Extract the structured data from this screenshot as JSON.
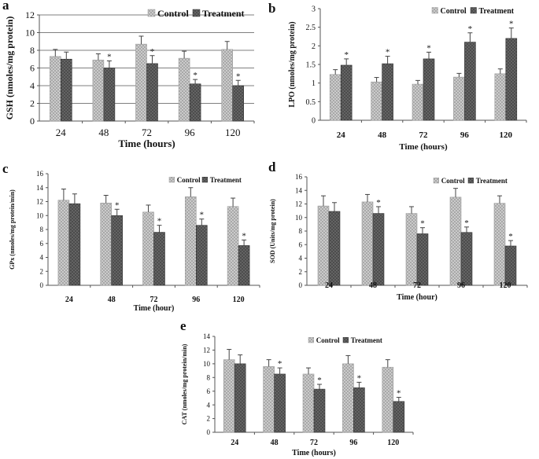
{
  "chart_data": [
    {
      "panel": "a",
      "type": "bar",
      "title": "",
      "xlabel": "Time (hours)",
      "ylabel": "GSH (nmoles/mg protein)",
      "categories": [
        "24",
        "48",
        "72",
        "96",
        "120"
      ],
      "ylim": [
        0,
        12
      ],
      "yticks": [
        "0",
        "2",
        "4",
        "6",
        "8",
        "10",
        "12"
      ],
      "gridlines": true,
      "legend": "top-right",
      "series": [
        {
          "name": "Control",
          "values": [
            7.3,
            6.9,
            8.7,
            7.1,
            8.1
          ],
          "errors": [
            0.8,
            0.7,
            0.9,
            0.8,
            0.9
          ],
          "marks": [
            "",
            "",
            "",
            "",
            ""
          ]
        },
        {
          "name": "Treatment",
          "values": [
            7.0,
            6.0,
            6.5,
            4.2,
            4.0
          ],
          "errors": [
            0.8,
            0.8,
            0.9,
            0.5,
            0.6
          ],
          "marks": [
            "",
            "*",
            "*",
            "*",
            "*"
          ]
        }
      ]
    },
    {
      "panel": "b",
      "type": "bar",
      "title": "",
      "xlabel": "Time (hours)",
      "ylabel": "LPO (nmoles/mg protein)",
      "categories": [
        "24",
        "48",
        "72",
        "96",
        "120"
      ],
      "ylim": [
        0,
        3
      ],
      "yticks": [
        "0",
        "0.5",
        "1",
        "1.5",
        "2",
        "2.5",
        "3"
      ],
      "gridlines": false,
      "legend": "top-right",
      "series": [
        {
          "name": "Control",
          "values": [
            1.23,
            1.03,
            0.97,
            1.16,
            1.25
          ],
          "errors": [
            0.13,
            0.12,
            0.1,
            0.1,
            0.13
          ],
          "marks": [
            "",
            "",
            "",
            "",
            ""
          ]
        },
        {
          "name": "Treatment",
          "values": [
            1.48,
            1.52,
            1.65,
            2.1,
            2.2
          ],
          "errors": [
            0.17,
            0.2,
            0.18,
            0.25,
            0.28
          ],
          "marks": [
            "*",
            "*",
            "*",
            "*",
            "*"
          ]
        }
      ]
    },
    {
      "panel": "c",
      "type": "bar",
      "title": "",
      "xlabel": "Time (hour)",
      "ylabel": "GPx (nmoles/mg protein/min)",
      "categories": [
        "24",
        "48",
        "72",
        "96",
        "120"
      ],
      "ylim": [
        0,
        16
      ],
      "yticks": [
        "0",
        "2",
        "4",
        "6",
        "8",
        "10",
        "12",
        "14",
        "16"
      ],
      "gridlines": false,
      "legend": "top-right",
      "series": [
        {
          "name": "Control",
          "values": [
            12.2,
            11.8,
            10.5,
            12.7,
            11.3
          ],
          "errors": [
            1.6,
            1.1,
            1.0,
            1.3,
            1.2
          ],
          "marks": [
            "",
            "",
            "",
            "",
            ""
          ]
        },
        {
          "name": "Treatment",
          "values": [
            11.7,
            10.0,
            7.6,
            8.6,
            5.7
          ],
          "errors": [
            1.4,
            0.9,
            1.0,
            0.9,
            0.8
          ],
          "marks": [
            "",
            "*",
            "*",
            "*",
            "*"
          ]
        }
      ]
    },
    {
      "panel": "d",
      "type": "bar",
      "title": "",
      "xlabel": "Time (hour)",
      "ylabel": "SOD (Units/mg protein)",
      "categories": [
        "24",
        "48",
        "72",
        "96",
        "120"
      ],
      "ylim": [
        0,
        16
      ],
      "yticks": [
        "0",
        "2",
        "4",
        "6",
        "8",
        "10",
        "12",
        "14",
        "16"
      ],
      "gridlines": false,
      "legend": "top-right",
      "series": [
        {
          "name": "Control",
          "values": [
            11.7,
            12.3,
            10.6,
            13.0,
            12.1
          ],
          "errors": [
            1.5,
            1.1,
            1.0,
            1.3,
            1.1
          ],
          "marks": [
            "",
            "",
            "",
            "",
            ""
          ]
        },
        {
          "name": "Treatment",
          "values": [
            10.9,
            10.6,
            7.6,
            7.8,
            5.8
          ],
          "errors": [
            1.3,
            1.0,
            0.9,
            0.8,
            0.8
          ],
          "marks": [
            "",
            "*",
            "*",
            "*",
            "*"
          ]
        }
      ]
    },
    {
      "panel": "e",
      "type": "bar",
      "title": "",
      "xlabel": "Time (hours)",
      "ylabel": "CAT (nmoles/mg protein/min)",
      "categories": [
        "24",
        "48",
        "72",
        "96",
        "120"
      ],
      "ylim": [
        0,
        14
      ],
      "yticks": [
        "0",
        "2",
        "4",
        "6",
        "8",
        "10",
        "12",
        "14"
      ],
      "gridlines": false,
      "legend": "top-right",
      "series": [
        {
          "name": "Control",
          "values": [
            10.6,
            9.6,
            8.5,
            10.0,
            9.5
          ],
          "errors": [
            1.5,
            1.0,
            0.9,
            1.2,
            1.1
          ],
          "marks": [
            "",
            "",
            "",
            "",
            ""
          ]
        },
        {
          "name": "Treatment",
          "values": [
            10.0,
            8.5,
            6.3,
            6.5,
            4.5
          ],
          "errors": [
            1.3,
            0.9,
            0.7,
            0.8,
            0.6
          ],
          "marks": [
            "",
            "*",
            "*",
            "*",
            "*"
          ]
        }
      ]
    }
  ],
  "colors": {
    "control": "#c8c8c8",
    "treatment": "#4a4a4a",
    "axis": "#555555"
  }
}
